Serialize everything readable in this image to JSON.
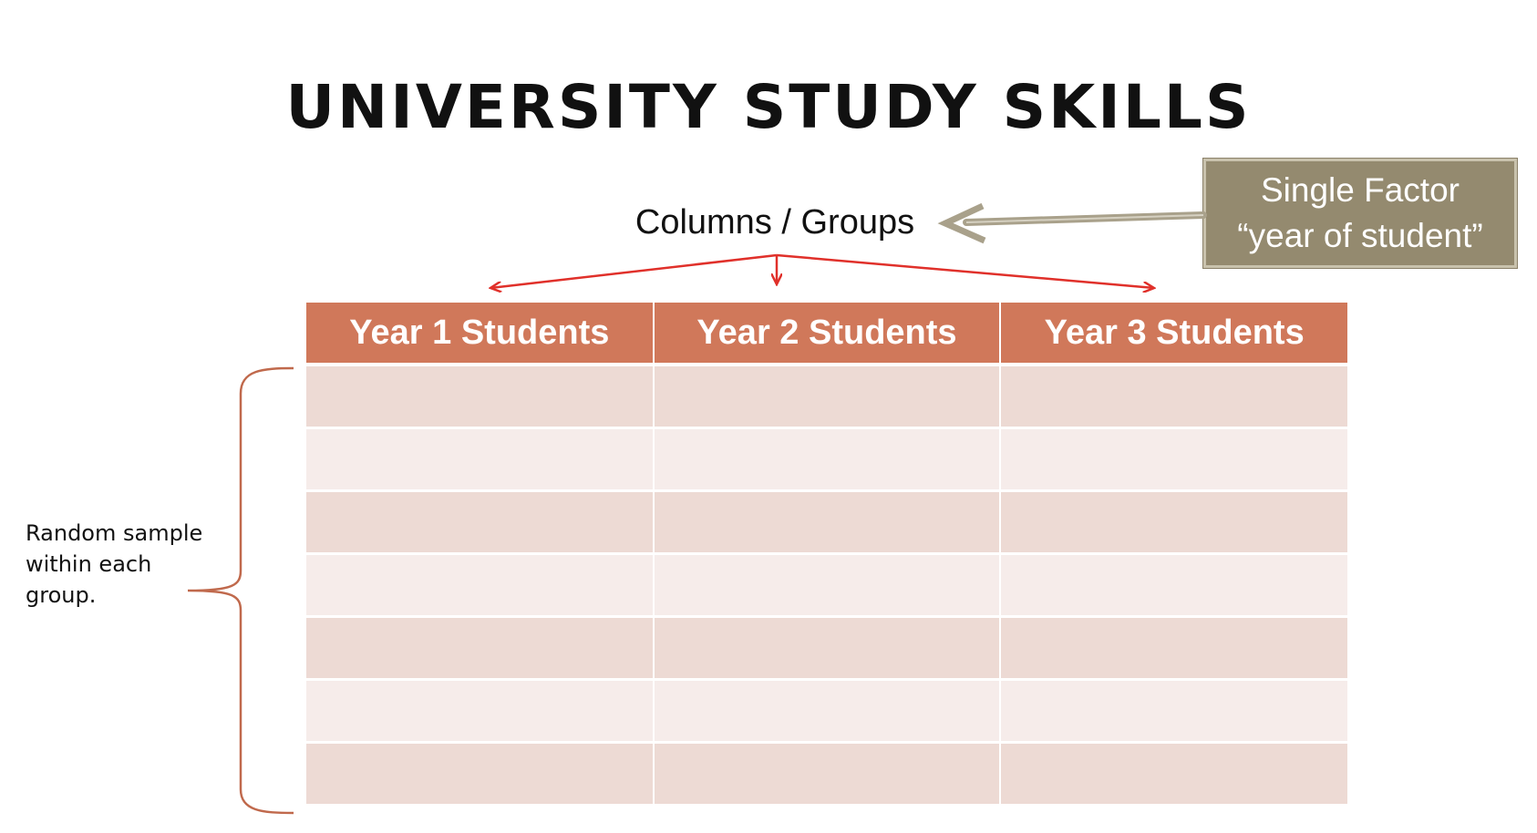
{
  "title": "UNIVERSITY STUDY SKILLS",
  "columns_label": "Columns / Groups",
  "factor_box": {
    "line1": "Single Factor",
    "line2": "“year of student”"
  },
  "table": {
    "headers": [
      "Year 1 Students",
      "Year 2 Students",
      "Year 3 Students"
    ],
    "row_count": 7
  },
  "side_note": "Random sample within each group.",
  "colors": {
    "header_fill": "#d0785a",
    "row_dark": "#eddad4",
    "row_light": "#f6ecea",
    "arrow_red": "#e0302a",
    "brace": "#c0694c",
    "factor_box": "#948a6f",
    "factor_arrow": "#a9a18b"
  }
}
